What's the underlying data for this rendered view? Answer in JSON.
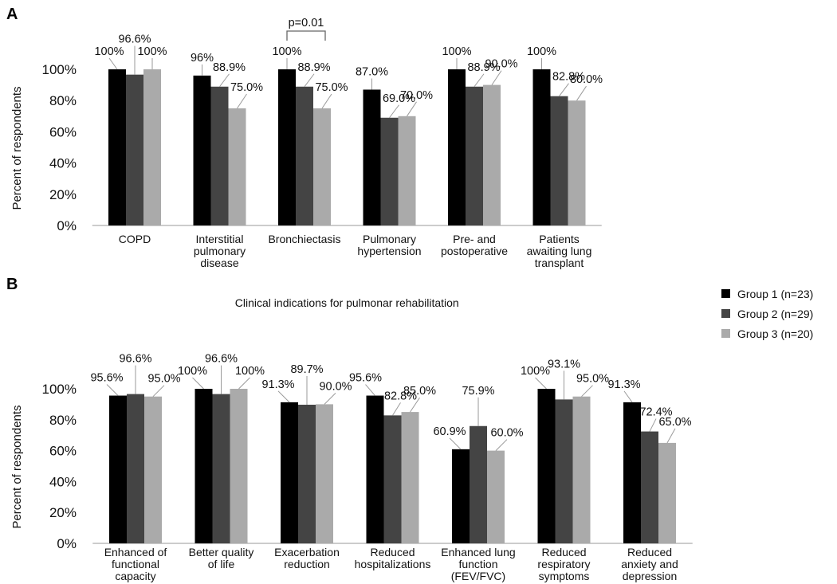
{
  "legend": [
    {
      "label": "Group 1 (n=23)",
      "color": "#000000"
    },
    {
      "label": "Group 2 (n=29)",
      "color": "#444444"
    },
    {
      "label": "Group 3 (n=20)",
      "color": "#aaaaaa"
    }
  ],
  "chart_data": [
    {
      "type": "bar",
      "panel": "A",
      "xlabel": "Clinical indications for pulmonar rehabilitation",
      "ylabel": "Percent of respondents",
      "ylim": [
        0,
        100
      ],
      "yticks": [
        "0%",
        "20%",
        "40%",
        "60%",
        "80%",
        "100%"
      ],
      "categories": [
        [
          "COPD"
        ],
        [
          "Interstitial",
          "pulmonary",
          "disease"
        ],
        [
          "Bronchiectasis"
        ],
        [
          "Pulmonary",
          "hypertension"
        ],
        [
          "Pre- and",
          "postoperative"
        ],
        [
          "Patients",
          "awaiting lung",
          "transplant"
        ]
      ],
      "series": [
        {
          "name": "Group 1 (n=23)",
          "values": [
            100,
            96,
            100,
            87.0,
            100,
            100
          ],
          "labels": [
            "100%",
            "96%",
            "100%",
            "87.0%",
            "100%",
            "100%"
          ]
        },
        {
          "name": "Group 2 (n=29)",
          "values": [
            96.6,
            88.9,
            88.9,
            69.0,
            88.9,
            82.8
          ],
          "labels": [
            "96.6%",
            "88.9%",
            "88.9%",
            "69.0%",
            "88.9%",
            "82.8%"
          ]
        },
        {
          "name": "Group 3 (n=20)",
          "values": [
            100,
            75.0,
            75.0,
            70.0,
            90.0,
            80.0
          ],
          "labels": [
            "100%",
            "75.0%",
            "75.0%",
            "70.0%",
            "90.0%",
            "80.0%"
          ]
        }
      ],
      "annotations": [
        {
          "text": "p=0.01",
          "category_index": 2,
          "from_series": 0,
          "to_series": 2
        }
      ]
    },
    {
      "type": "bar",
      "panel": "B",
      "xlabel": "",
      "ylabel": "Percent of respondents",
      "ylim": [
        0,
        100
      ],
      "yticks": [
        "0%",
        "20%",
        "40%",
        "60%",
        "80%",
        "100%"
      ],
      "categories": [
        [
          "Enhanced of",
          "functional",
          "capacity"
        ],
        [
          "Better quality",
          "of life"
        ],
        [
          "Exacerbation",
          "reduction"
        ],
        [
          "Reduced",
          "hospitalizations"
        ],
        [
          "Enhanced lung",
          "function",
          "(FEV/FVC)"
        ],
        [
          "Reduced",
          "respiratory",
          "symptoms"
        ],
        [
          "Reduced",
          "anxiety and",
          "depression"
        ]
      ],
      "series": [
        {
          "name": "Group 1 (n=23)",
          "values": [
            95.6,
            100,
            91.3,
            95.6,
            60.9,
            100,
            91.3
          ],
          "labels": [
            "95.6%",
            "100%",
            "91.3%",
            "95.6%",
            "60.9%",
            "100%",
            "91.3%"
          ]
        },
        {
          "name": "Group 2 (n=29)",
          "values": [
            96.6,
            96.6,
            89.7,
            82.8,
            75.9,
            93.1,
            72.4
          ],
          "labels": [
            "96.6%",
            "96.6%",
            "89.7%",
            "82.8%",
            "75.9%",
            "93.1%",
            "72.4%"
          ]
        },
        {
          "name": "Group 3 (n=20)",
          "values": [
            95.0,
            100,
            90.0,
            85.0,
            60.0,
            95.0,
            65.0
          ],
          "labels": [
            "95.0%",
            "100%",
            "90.0%",
            "85.0%",
            "60.0%",
            "95.0%",
            "65.0%"
          ]
        }
      ],
      "annotations": []
    }
  ]
}
